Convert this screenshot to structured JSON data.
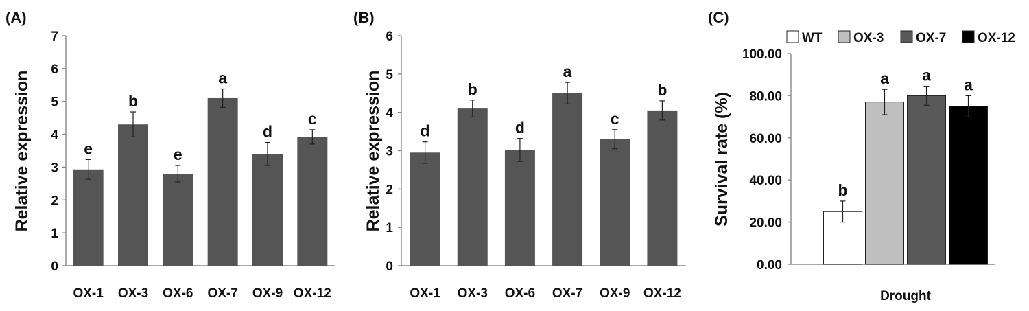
{
  "chart_data": [
    {
      "panel": "(A)",
      "type": "bar",
      "categories": [
        "OX-1",
        "OX-3",
        "OX-6",
        "OX-7",
        "OX-9",
        "OX-12"
      ],
      "values": [
        2.93,
        4.3,
        2.8,
        5.1,
        3.4,
        3.92
      ],
      "errors": [
        0.3,
        0.38,
        0.25,
        0.28,
        0.35,
        0.22
      ],
      "significance": [
        "e",
        "b",
        "e",
        "a",
        "d",
        "c"
      ],
      "ylabel": "Relative expression",
      "ylim": [
        0,
        7
      ],
      "yticks": [
        "0",
        "1",
        "2",
        "3",
        "4",
        "5",
        "6",
        "7"
      ],
      "bar_color": "#555555",
      "grid": false
    },
    {
      "panel": "(B)",
      "type": "bar",
      "categories": [
        "OX-1",
        "OX-3",
        "OX-6",
        "OX-7",
        "OX-9",
        "OX-12"
      ],
      "values": [
        2.95,
        4.1,
        3.02,
        4.5,
        3.3,
        4.05
      ],
      "errors": [
        0.28,
        0.22,
        0.3,
        0.28,
        0.25,
        0.25
      ],
      "significance": [
        "d",
        "b",
        "d",
        "a",
        "c",
        "b"
      ],
      "ylabel": "Relative expression",
      "ylim": [
        0,
        6
      ],
      "yticks": [
        "0",
        "1",
        "2",
        "3",
        "4",
        "5",
        "6"
      ],
      "bar_color": "#555555",
      "grid": false
    },
    {
      "panel": "(C)",
      "type": "bar",
      "categories": [
        "Drought"
      ],
      "series": [
        {
          "name": "WT",
          "values": [
            25.0
          ],
          "errors": [
            5.0
          ],
          "significance": [
            "b"
          ],
          "color": "#ffffff"
        },
        {
          "name": "OX-3",
          "values": [
            77.0
          ],
          "errors": [
            6.0
          ],
          "significance": [
            "a"
          ],
          "color": "#bfbfbf"
        },
        {
          "name": "OX-7",
          "values": [
            80.0
          ],
          "errors": [
            4.5
          ],
          "significance": [
            "a"
          ],
          "color": "#595959"
        },
        {
          "name": "OX-12",
          "values": [
            75.0
          ],
          "errors": [
            5.0
          ],
          "significance": [
            "a"
          ],
          "color": "#000000"
        }
      ],
      "ylabel": "Survival rate (%)",
      "ylim": [
        0,
        100
      ],
      "yticks": [
        "0.00",
        "20.00",
        "40.00",
        "60.00",
        "80.00",
        "100.00"
      ],
      "legend": "top",
      "grid": false
    }
  ]
}
